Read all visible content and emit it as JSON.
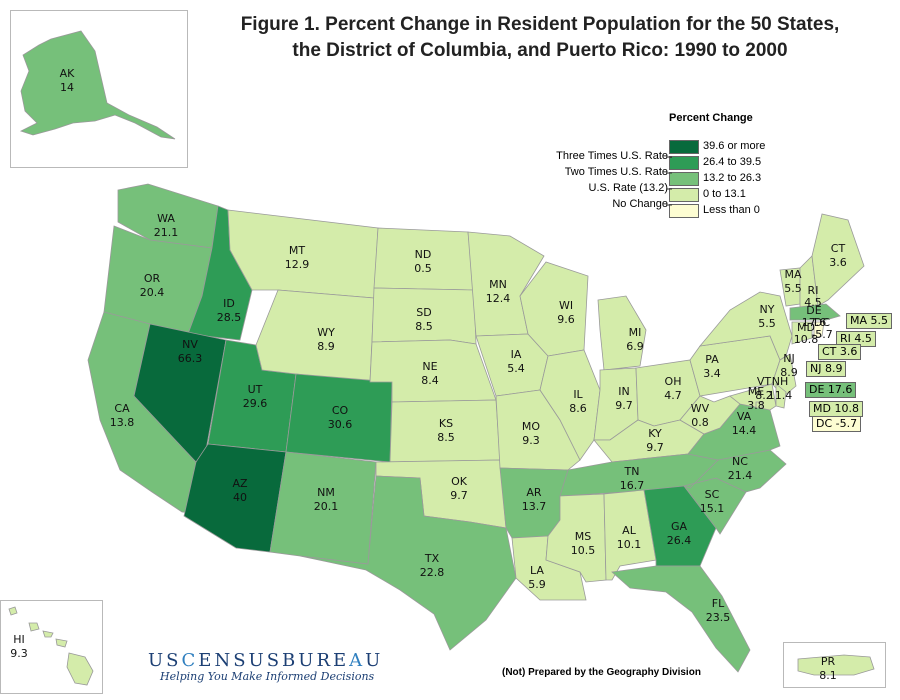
{
  "title_line1": "Figure 1.  Percent Change in Resident Population for the 50 States,",
  "title_line2": "the District of Columbia, and Puerto Rico: 1990 to 2000",
  "legend": {
    "title": "Percent Change",
    "items": [
      {
        "label": "39.6 or more",
        "color": "#086a3c"
      },
      {
        "label": "26.4 to 39.5",
        "color": "#2e9c56"
      },
      {
        "label": "13.2 to 26.3",
        "color": "#76c07a"
      },
      {
        "label": "0 to 13.1",
        "color": "#d4ecaa"
      },
      {
        "label": "Less than 0",
        "color": "#fdfdd2"
      }
    ],
    "references": [
      "Three Times U.S. Rate",
      "Two Times U.S. Rate",
      "U.S. Rate (13.2)",
      "No Change"
    ]
  },
  "states": [
    {
      "abbr": "WA",
      "value": "21.1",
      "color": "#76c07a"
    },
    {
      "abbr": "OR",
      "value": "20.4",
      "color": "#76c07a"
    },
    {
      "abbr": "CA",
      "value": "13.8",
      "color": "#76c07a"
    },
    {
      "abbr": "ID",
      "value": "28.5",
      "color": "#2e9c56"
    },
    {
      "abbr": "NV",
      "value": "66.3",
      "color": "#086a3c"
    },
    {
      "abbr": "UT",
      "value": "29.6",
      "color": "#2e9c56"
    },
    {
      "abbr": "AZ",
      "value": "40",
      "color": "#086a3c"
    },
    {
      "abbr": "MT",
      "value": "12.9",
      "color": "#d4ecaa"
    },
    {
      "abbr": "WY",
      "value": "8.9",
      "color": "#d4ecaa"
    },
    {
      "abbr": "CO",
      "value": "30.6",
      "color": "#2e9c56"
    },
    {
      "abbr": "NM",
      "value": "20.1",
      "color": "#76c07a"
    },
    {
      "abbr": "ND",
      "value": "0.5",
      "color": "#d4ecaa"
    },
    {
      "abbr": "SD",
      "value": "8.5",
      "color": "#d4ecaa"
    },
    {
      "abbr": "NE",
      "value": "8.4",
      "color": "#d4ecaa"
    },
    {
      "abbr": "KS",
      "value": "8.5",
      "color": "#d4ecaa"
    },
    {
      "abbr": "OK",
      "value": "9.7",
      "color": "#d4ecaa"
    },
    {
      "abbr": "TX",
      "value": "22.8",
      "color": "#76c07a"
    },
    {
      "abbr": "MN",
      "value": "12.4",
      "color": "#d4ecaa"
    },
    {
      "abbr": "IA",
      "value": "5.4",
      "color": "#d4ecaa"
    },
    {
      "abbr": "MO",
      "value": "9.3",
      "color": "#d4ecaa"
    },
    {
      "abbr": "AR",
      "value": "13.7",
      "color": "#76c07a"
    },
    {
      "abbr": "LA",
      "value": "5.9",
      "color": "#d4ecaa"
    },
    {
      "abbr": "WI",
      "value": "9.6",
      "color": "#d4ecaa"
    },
    {
      "abbr": "IL",
      "value": "8.6",
      "color": "#d4ecaa"
    },
    {
      "abbr": "MI",
      "value": "6.9",
      "color": "#d4ecaa"
    },
    {
      "abbr": "IN",
      "value": "9.7",
      "color": "#d4ecaa"
    },
    {
      "abbr": "OH",
      "value": "4.7",
      "color": "#d4ecaa"
    },
    {
      "abbr": "KY",
      "value": "9.7",
      "color": "#d4ecaa"
    },
    {
      "abbr": "TN",
      "value": "16.7",
      "color": "#76c07a"
    },
    {
      "abbr": "MS",
      "value": "10.5",
      "color": "#d4ecaa"
    },
    {
      "abbr": "AL",
      "value": "10.1",
      "color": "#d4ecaa"
    },
    {
      "abbr": "GA",
      "value": "26.4",
      "color": "#2e9c56"
    },
    {
      "abbr": "FL",
      "value": "23.5",
      "color": "#76c07a"
    },
    {
      "abbr": "SC",
      "value": "15.1",
      "color": "#76c07a"
    },
    {
      "abbr": "NC",
      "value": "21.4",
      "color": "#76c07a"
    },
    {
      "abbr": "VA",
      "value": "14.4",
      "color": "#76c07a"
    },
    {
      "abbr": "WV",
      "value": "0.8",
      "color": "#d4ecaa"
    },
    {
      "abbr": "PA",
      "value": "3.4",
      "color": "#d4ecaa"
    },
    {
      "abbr": "NY",
      "value": "5.5",
      "color": "#d4ecaa"
    },
    {
      "abbr": "NJ",
      "value": "8.9",
      "color": "#d4ecaa"
    },
    {
      "abbr": "VT",
      "value": "8.2",
      "color": "#d4ecaa"
    },
    {
      "abbr": "NH",
      "value": "11.4",
      "color": "#d4ecaa"
    },
    {
      "abbr": "ME",
      "value": "3.8",
      "color": "#d4ecaa"
    },
    {
      "abbr": "MA",
      "value": "5.5",
      "color": "#d4ecaa"
    },
    {
      "abbr": "RI",
      "value": "4.5",
      "color": "#d4ecaa"
    },
    {
      "abbr": "CT",
      "value": "3.6",
      "color": "#d4ecaa"
    },
    {
      "abbr": "DE",
      "value": "17.6",
      "color": "#76c07a"
    },
    {
      "abbr": "MD",
      "value": "10.8",
      "color": "#d4ecaa"
    },
    {
      "abbr": "DC",
      "value": "-5.7",
      "color": "#fdfdd2"
    },
    {
      "abbr": "AK",
      "value": "14",
      "color": "#76c07a"
    },
    {
      "abbr": "HI",
      "value": "9.3",
      "color": "#d4ecaa"
    },
    {
      "abbr": "PR",
      "value": "8.1",
      "color": "#d4ecaa"
    }
  ],
  "callouts": [
    {
      "abbr": "MA",
      "value": "5.5",
      "color": "#d4ecaa"
    },
    {
      "abbr": "RI",
      "value": "4.5",
      "color": "#d4ecaa"
    },
    {
      "abbr": "CT",
      "value": "3.6",
      "color": "#d4ecaa"
    },
    {
      "abbr": "NJ",
      "value": "8.9",
      "color": "#d4ecaa"
    },
    {
      "abbr": "DE",
      "value": "17.6",
      "color": "#76c07a"
    },
    {
      "abbr": "MD",
      "value": "10.8",
      "color": "#d4ecaa"
    },
    {
      "abbr": "DC",
      "value": "-5.7",
      "color": "#fdfdd2"
    }
  ],
  "logo": {
    "text": "USCENSUSBUREAU",
    "tagline": "Helping You Make Informed Decisions"
  },
  "credit": "(Not) Prepared by the Geography Division"
}
